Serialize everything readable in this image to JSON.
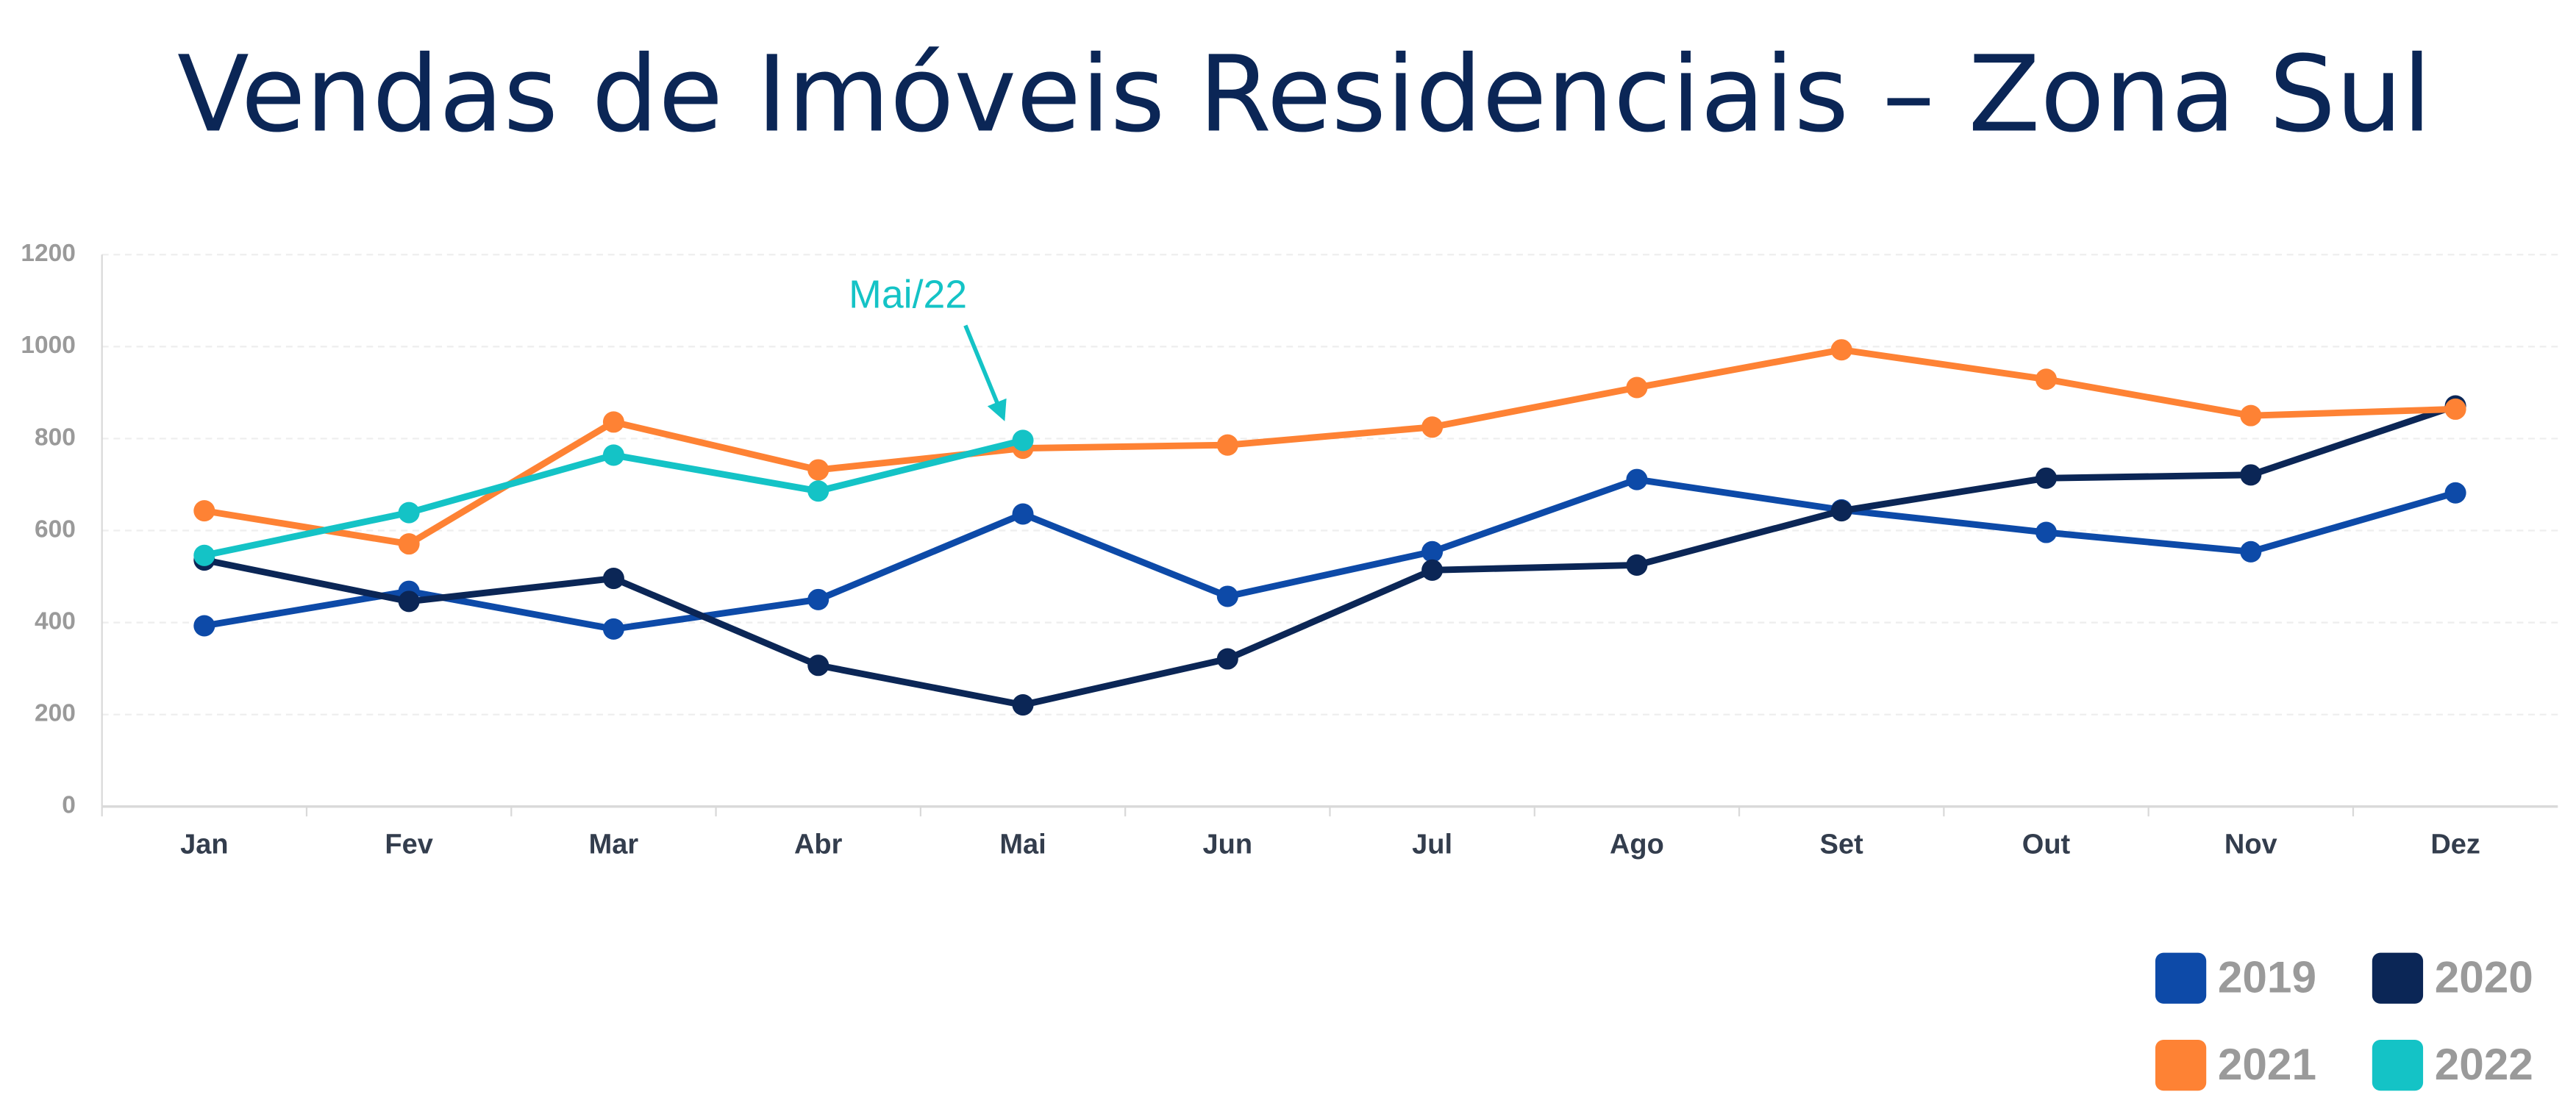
{
  "chart_data": {
    "type": "line",
    "title": "Vendas de Imóveis Residenciais – Zona Sul",
    "annotation": "Mai/22",
    "categories": [
      "Jan",
      "Fev",
      "Mar",
      "Abr",
      "Mai",
      "Jun",
      "Jul",
      "Ago",
      "Set",
      "Out",
      "Nov",
      "Dez"
    ],
    "series": [
      {
        "name": "2019",
        "color": "#0d4aa8",
        "values": [
          393,
          468,
          386,
          450,
          636,
          457,
          554,
          711,
          645,
          596,
          554,
          682
        ]
      },
      {
        "name": "2020",
        "color": "#0b2656",
        "values": [
          536,
          446,
          496,
          307,
          221,
          321,
          514,
          525,
          643,
          714,
          721,
          871
        ]
      },
      {
        "name": "2021",
        "color": "#fe8234",
        "values": [
          643,
          571,
          836,
          732,
          779,
          786,
          825,
          911,
          993,
          929,
          850,
          864
        ]
      },
      {
        "name": "2022",
        "color": "#14c3c6",
        "values": [
          546,
          639,
          764,
          686,
          796,
          null,
          null,
          null,
          null,
          null,
          null,
          null
        ]
      }
    ],
    "ylim": [
      0,
      1200
    ],
    "yticks": [
      0,
      200,
      400,
      600,
      800,
      1000,
      1200
    ],
    "grid": true,
    "legend": "lower right"
  }
}
